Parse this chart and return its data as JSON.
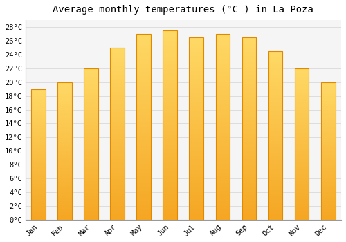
{
  "title": "Average monthly temperatures (°C ) in La Poza",
  "months": [
    "Jan",
    "Feb",
    "Mar",
    "Apr",
    "May",
    "Jun",
    "Jul",
    "Aug",
    "Sep",
    "Oct",
    "Nov",
    "Dec"
  ],
  "values": [
    19,
    20,
    22,
    25,
    27,
    27.5,
    26.5,
    27,
    26.5,
    24.5,
    22,
    20
  ],
  "bar_color_top": "#FFD966",
  "bar_color_bottom": "#F5A623",
  "bar_edge_color": "#E08800",
  "ylim": [
    0,
    29
  ],
  "yticks": [
    0,
    2,
    4,
    6,
    8,
    10,
    12,
    14,
    16,
    18,
    20,
    22,
    24,
    26,
    28
  ],
  "background_color": "#ffffff",
  "plot_bg_color": "#f5f5f5",
  "grid_color": "#dddddd",
  "title_fontsize": 10,
  "tick_fontsize": 7.5,
  "font_family": "monospace"
}
